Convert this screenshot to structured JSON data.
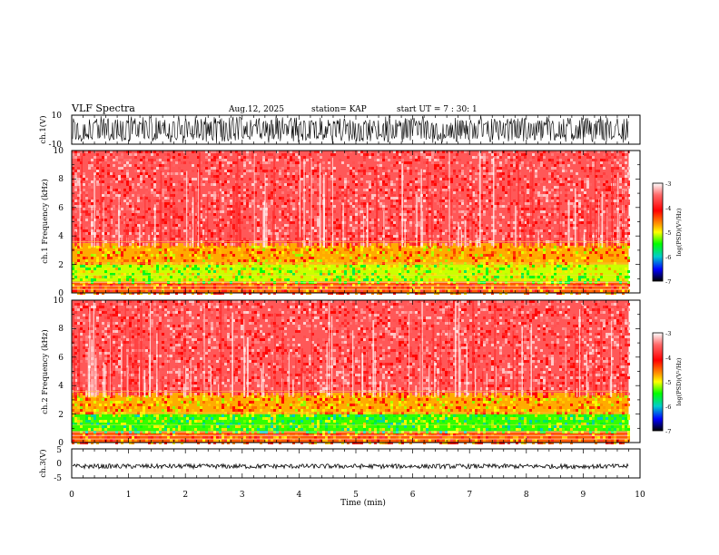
{
  "header": {
    "title": "VLF Spectra",
    "date": "Aug.12, 2025",
    "station": "station= KAP",
    "start_ut": "start UT =  7 : 30: 1"
  },
  "chart_data": [
    {
      "type": "line",
      "name": "ch.1 waveform",
      "ylabel": "ch.1(V)",
      "ylim": [
        -10,
        10
      ],
      "yticks": [
        "10",
        "-10"
      ],
      "xlim": [
        0,
        10
      ],
      "note": "dense black waveform oscillating between about -10 V and +10 V over 0–9.8 min"
    },
    {
      "type": "heatmap",
      "name": "ch.1 spectrogram",
      "ylabel": "ch.1 Frequency (kHz)",
      "ylim": [
        0,
        10
      ],
      "yticks": [
        "0",
        "2",
        "4",
        "6",
        "8",
        "10"
      ],
      "xlim": [
        0,
        10
      ],
      "data_extent_min": 9.8,
      "colorbar": {
        "label": "log(PSD)(V²/Hz)",
        "range": [
          -7,
          -3
        ],
        "ticks": [
          "-3",
          "-4",
          "-5",
          "-6",
          "-7"
        ]
      },
      "bands": [
        {
          "from_khz": 0,
          "to_khz": 0.8,
          "log_psd": -4.3
        },
        {
          "from_khz": 0.8,
          "to_khz": 2.0,
          "log_psd": -5.1
        },
        {
          "from_khz": 2.0,
          "to_khz": 3.5,
          "log_psd": -4.6
        },
        {
          "from_khz": 3.5,
          "to_khz": 10,
          "log_psd": -3.6
        }
      ]
    },
    {
      "type": "heatmap",
      "name": "ch.2 spectrogram",
      "ylabel": "ch.2 Frequency (kHz)",
      "ylim": [
        0,
        10
      ],
      "yticks": [
        "0",
        "2",
        "4",
        "6",
        "8",
        "10"
      ],
      "xlim": [
        0,
        10
      ],
      "data_extent_min": 9.8,
      "colorbar": {
        "label": "log(PSD)(V²/Hz)",
        "range": [
          -7,
          -3
        ],
        "ticks": [
          "-3",
          "-4",
          "-5",
          "-6",
          "-7"
        ]
      },
      "bands": [
        {
          "from_khz": 0,
          "to_khz": 0.8,
          "log_psd": -4.3
        },
        {
          "from_khz": 0.8,
          "to_khz": 2.0,
          "log_psd": -5.4
        },
        {
          "from_khz": 2.0,
          "to_khz": 3.5,
          "log_psd": -4.6
        },
        {
          "from_khz": 3.5,
          "to_khz": 10,
          "log_psd": -3.6
        }
      ]
    },
    {
      "type": "line",
      "name": "ch.3 waveform",
      "ylabel": "ch.3(V)",
      "ylim": [
        -5,
        5
      ],
      "yticks": [
        "5",
        "0",
        "-5"
      ],
      "xlim": [
        0,
        10
      ],
      "note": "thin band near about -1 V over 0–9.8 min"
    }
  ],
  "xaxis": {
    "label": "Time (min)",
    "range": [
      0,
      10
    ],
    "ticks": [
      "0",
      "1",
      "2",
      "3",
      "4",
      "5",
      "6",
      "7",
      "8",
      "9",
      "10"
    ]
  },
  "colors": {
    "axis": "#000000",
    "background_signal": "#f25a5a",
    "mid_band": "#f2e31c",
    "strong_band": "#3fe22a"
  }
}
